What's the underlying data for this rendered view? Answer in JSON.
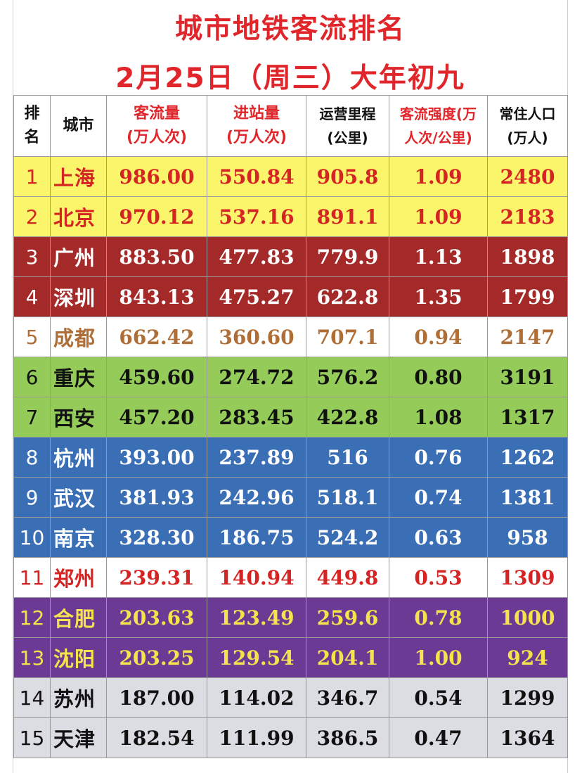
{
  "title_line1": "城市地铁客流排名",
  "title_line2": "2月25日（周三）大年初九",
  "header": {
    "rank": [
      "排",
      "名"
    ],
    "city": "城市",
    "flow": [
      "客流量",
      "(万人次)"
    ],
    "inbound": [
      "进站量",
      "(万人次)"
    ],
    "mileage": [
      "运营里程",
      "(公里)"
    ],
    "intensity": [
      "客流强度(万",
      "人次/公里)"
    ],
    "population": [
      "常住人口",
      "(万人)"
    ]
  },
  "rows": [
    {
      "rank": "1",
      "city": "上海",
      "flow": "986.00",
      "inbound": "550.84",
      "mileage": "905.8",
      "intensity": "1.09",
      "population": "2480"
    },
    {
      "rank": "2",
      "city": "北京",
      "flow": "970.12",
      "inbound": "537.16",
      "mileage": "891.1",
      "intensity": "1.09",
      "population": "2183"
    },
    {
      "rank": "3",
      "city": "广州",
      "flow": "883.50",
      "inbound": "477.83",
      "mileage": "779.9",
      "intensity": "1.13",
      "population": "1898"
    },
    {
      "rank": "4",
      "city": "深圳",
      "flow": "843.13",
      "inbound": "475.27",
      "mileage": "622.8",
      "intensity": "1.35",
      "population": "1799"
    },
    {
      "rank": "5",
      "city": "成都",
      "flow": "662.42",
      "inbound": "360.60",
      "mileage": "707.1",
      "intensity": "0.94",
      "population": "2147"
    },
    {
      "rank": "6",
      "city": "重庆",
      "flow": "459.60",
      "inbound": "274.72",
      "mileage": "576.2",
      "intensity": "0.80",
      "population": "3191"
    },
    {
      "rank": "7",
      "city": "西安",
      "flow": "457.20",
      "inbound": "283.45",
      "mileage": "422.8",
      "intensity": "1.08",
      "population": "1317"
    },
    {
      "rank": "8",
      "city": "杭州",
      "flow": "393.00",
      "inbound": "237.89",
      "mileage": "516",
      "intensity": "0.76",
      "population": "1262"
    },
    {
      "rank": "9",
      "city": "武汉",
      "flow": "381.93",
      "inbound": "242.96",
      "mileage": "518.1",
      "intensity": "0.74",
      "population": "1381"
    },
    {
      "rank": "10",
      "city": "南京",
      "flow": "328.30",
      "inbound": "186.75",
      "mileage": "524.2",
      "intensity": "0.63",
      "population": "958"
    },
    {
      "rank": "11",
      "city": "郑州",
      "flow": "239.31",
      "inbound": "140.94",
      "mileage": "449.8",
      "intensity": "0.53",
      "population": "1309"
    },
    {
      "rank": "12",
      "city": "合肥",
      "flow": "203.63",
      "inbound": "123.49",
      "mileage": "259.6",
      "intensity": "0.78",
      "population": "1000"
    },
    {
      "rank": "13",
      "city": "沈阳",
      "flow": "203.25",
      "inbound": "129.54",
      "mileage": "204.1",
      "intensity": "1.00",
      "population": "924"
    },
    {
      "rank": "14",
      "city": "苏州",
      "flow": "187.00",
      "inbound": "114.02",
      "mileage": "346.7",
      "intensity": "0.54",
      "population": "1299"
    },
    {
      "rank": "15",
      "city": "天津",
      "flow": "182.54",
      "inbound": "111.99",
      "mileage": "386.5",
      "intensity": "0.47",
      "population": "1364"
    }
  ],
  "row_colors": {
    "yellow": "#fbf56b",
    "darkred": "#a32a28",
    "green": "#95cc59",
    "blue": "#3a6fb6",
    "purple": "#6a3a94",
    "gray": "#dcdde3",
    "title_red": "#e0262b"
  }
}
